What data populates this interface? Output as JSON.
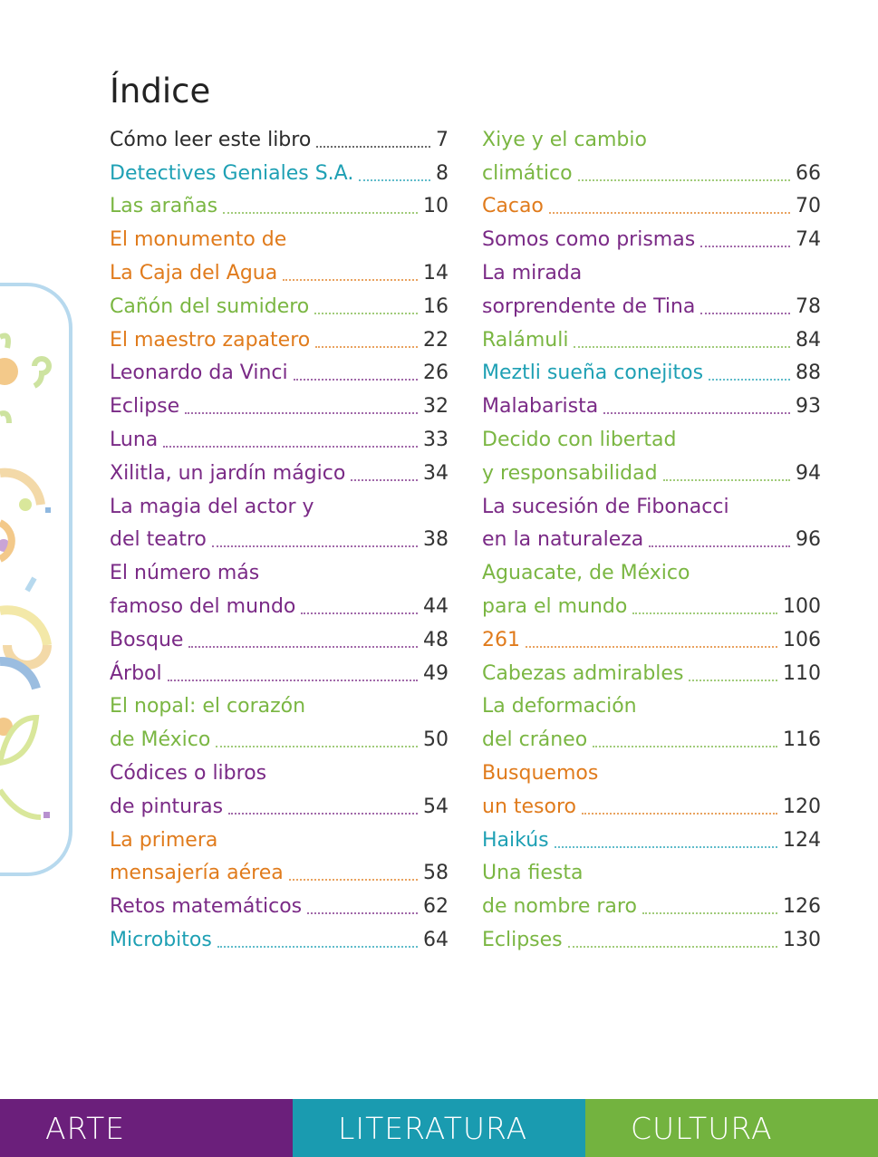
{
  "page": {
    "title": "Índice"
  },
  "colors": {
    "black": "#2b2b2b",
    "teal": "#1ea0b4",
    "green": "#7ab642",
    "orange": "#e07b1c",
    "purple": "#7a2a86",
    "bar_arte": "#6b1f7b",
    "bar_literatura": "#1a9bb0",
    "bar_cultura": "#73b33f"
  },
  "left_column": [
    {
      "text": "Cómo leer este libro",
      "page": "7",
      "color": "black"
    },
    {
      "text": "Detectives Geniales S.A.",
      "page": "8",
      "color": "teal"
    },
    {
      "text": "Las arañas",
      "page": "10",
      "color": "green"
    },
    {
      "text": "El monumento de",
      "page": "",
      "color": "orange"
    },
    {
      "text": "La Caja del Agua",
      "page": "14",
      "color": "orange"
    },
    {
      "text": "Cañón del sumidero",
      "page": "16",
      "color": "green"
    },
    {
      "text": "El maestro zapatero",
      "page": "22",
      "color": "orange"
    },
    {
      "text": "Leonardo da Vinci",
      "page": "26",
      "color": "purple"
    },
    {
      "text": "Eclipse",
      "page": "32",
      "color": "purple"
    },
    {
      "text": "Luna",
      "page": "33",
      "color": "purple"
    },
    {
      "text": "Xilitla, un jardín mágico",
      "page": "34",
      "color": "purple"
    },
    {
      "text": "La magia del actor y",
      "page": "",
      "color": "purple"
    },
    {
      "text": "del teatro",
      "page": "38",
      "color": "purple"
    },
    {
      "text": "El número más",
      "page": "",
      "color": "purple"
    },
    {
      "text": "famoso del mundo",
      "page": "44",
      "color": "purple"
    },
    {
      "text": "Bosque",
      "page": "48",
      "color": "purple"
    },
    {
      "text": "Árbol",
      "page": "49",
      "color": "purple"
    },
    {
      "text": "El nopal: el corazón",
      "page": "",
      "color": "green"
    },
    {
      "text": "de México",
      "page": "50",
      "color": "green"
    },
    {
      "text": "Códices o libros",
      "page": "",
      "color": "purple"
    },
    {
      "text": "de pinturas",
      "page": "54",
      "color": "purple"
    },
    {
      "text": "La primera",
      "page": "",
      "color": "orange"
    },
    {
      "text": "mensajería aérea",
      "page": "58",
      "color": "orange"
    },
    {
      "text": "Retos matemáticos",
      "page": "62",
      "color": "purple"
    },
    {
      "text": "Microbitos",
      "page": "64",
      "color": "teal"
    }
  ],
  "right_column": [
    {
      "text": "Xiye y el cambio",
      "page": "",
      "color": "green"
    },
    {
      "text": "climático",
      "page": "66",
      "color": "green"
    },
    {
      "text": "Cacao",
      "page": "70",
      "color": "orange"
    },
    {
      "text": "Somos como prismas",
      "page": "74",
      "color": "purple"
    },
    {
      "text": "La mirada",
      "page": "",
      "color": "purple"
    },
    {
      "text": "sorprendente de Tina",
      "page": "78",
      "color": "purple"
    },
    {
      "text": "Ralámuli",
      "page": "84",
      "color": "green"
    },
    {
      "text": "Meztli sueña conejitos",
      "page": "88",
      "color": "teal"
    },
    {
      "text": "Malabarista",
      "page": "93",
      "color": "purple"
    },
    {
      "text": "Decido con libertad",
      "page": "",
      "color": "green"
    },
    {
      "text": "y responsabilidad",
      "page": "94",
      "color": "green"
    },
    {
      "text": "La sucesión de Fibonacci",
      "page": "",
      "color": "purple"
    },
    {
      "text": "en la naturaleza",
      "page": "96",
      "color": "purple"
    },
    {
      "text": "Aguacate, de México",
      "page": "",
      "color": "green"
    },
    {
      "text": "para el mundo",
      "page": "100",
      "color": "green"
    },
    {
      "text": "261",
      "page": "106",
      "color": "orange"
    },
    {
      "text": "Cabezas admirables",
      "page": "110",
      "color": "green"
    },
    {
      "text": "La deformación",
      "page": "",
      "color": "green"
    },
    {
      "text": "del cráneo",
      "page": "116",
      "color": "green"
    },
    {
      "text": "Busquemos",
      "page": "",
      "color": "orange"
    },
    {
      "text": "un tesoro",
      "page": "120",
      "color": "orange"
    },
    {
      "text": "Haikús",
      "page": "124",
      "color": "teal"
    },
    {
      "text": "Una fiesta",
      "page": "",
      "color": "green"
    },
    {
      "text": "de nombre raro",
      "page": "126",
      "color": "green"
    },
    {
      "text": "Eclipses",
      "page": "130",
      "color": "green"
    }
  ],
  "footer": {
    "arte": "ARTE",
    "literatura": "LITERATURA",
    "cultura": "CULTURA"
  }
}
